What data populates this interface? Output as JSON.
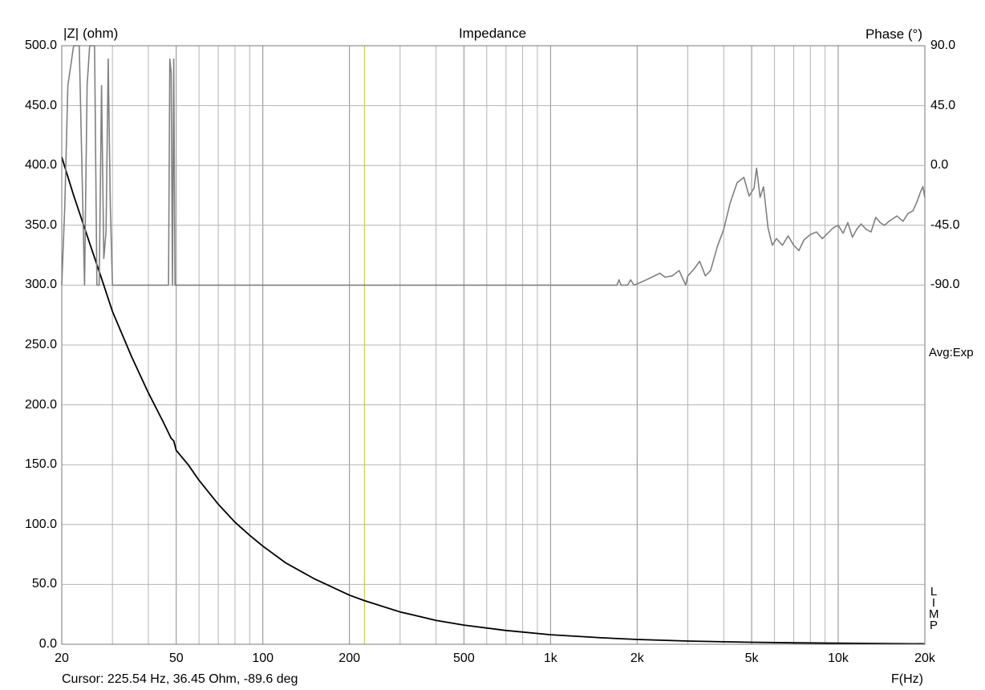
{
  "chart_data": {
    "type": "line",
    "title": "Impedance",
    "ylabel": "|Z| (ohm)",
    "y2label": "Phase (°)",
    "xlabel": "F(Hz)",
    "xscale": "log",
    "xlim": [
      20,
      20000
    ],
    "ylim": [
      0,
      500
    ],
    "y2lim": [
      -90,
      90
    ],
    "grid": true,
    "x_ticks": [
      20,
      50,
      100,
      200,
      500,
      1000,
      2000,
      5000,
      10000,
      20000
    ],
    "x_tick_labels": [
      "20",
      "50",
      "100",
      "200",
      "500",
      "1k",
      "2k",
      "5k",
      "10k",
      "20k"
    ],
    "y_ticks": [
      0,
      50,
      100,
      150,
      200,
      250,
      300,
      350,
      400,
      450,
      500
    ],
    "y_tick_labels": [
      "0.0",
      "50.0",
      "100.0",
      "150.0",
      "200.0",
      "250.0",
      "300.0",
      "350.0",
      "400.0",
      "450.0",
      "500.0"
    ],
    "y2_ticks": [
      90,
      45,
      0,
      -45,
      -90
    ],
    "y2_tick_labels": [
      "90.0",
      "45.0",
      "0.0",
      "-45.0",
      "-90.0"
    ],
    "cursor_x": 225.54,
    "series": [
      {
        "axis": "left",
        "color": "#000000",
        "points": [
          [
            20,
            407
          ],
          [
            22,
            375
          ],
          [
            25,
            335
          ],
          [
            28,
            300
          ],
          [
            30,
            278
          ],
          [
            35,
            240
          ],
          [
            40,
            210
          ],
          [
            45,
            186
          ],
          [
            48,
            172
          ],
          [
            49,
            170
          ],
          [
            50,
            162
          ],
          [
            55,
            150
          ],
          [
            60,
            137
          ],
          [
            70,
            117
          ],
          [
            80,
            102
          ],
          [
            90,
            91
          ],
          [
            100,
            82
          ],
          [
            120,
            68
          ],
          [
            150,
            55
          ],
          [
            200,
            41
          ],
          [
            225.54,
            36.45
          ],
          [
            300,
            27
          ],
          [
            400,
            20
          ],
          [
            500,
            16
          ],
          [
            700,
            11.5
          ],
          [
            1000,
            8
          ],
          [
            1500,
            5.4
          ],
          [
            2000,
            4
          ],
          [
            3000,
            2.7
          ],
          [
            5000,
            1.7
          ],
          [
            7000,
            1.2
          ],
          [
            10000,
            0.9
          ],
          [
            15000,
            0.6
          ],
          [
            20000,
            0.4
          ]
        ]
      },
      {
        "axis": "right",
        "color": "#808080",
        "points": [
          [
            20,
            -90
          ],
          [
            20.5,
            -30
          ],
          [
            21,
            60
          ],
          [
            22,
            90
          ],
          [
            23,
            90
          ],
          [
            24,
            -90
          ],
          [
            24.5,
            60
          ],
          [
            25,
            90
          ],
          [
            26,
            90
          ],
          [
            26.5,
            -90
          ],
          [
            27,
            -90
          ],
          [
            27.5,
            60
          ],
          [
            28,
            -70
          ],
          [
            28.5,
            -50
          ],
          [
            29,
            80
          ],
          [
            29.5,
            -30
          ],
          [
            30,
            -90
          ],
          [
            40,
            -90
          ],
          [
            47,
            -90
          ],
          [
            47.5,
            80
          ],
          [
            48,
            70
          ],
          [
            48.5,
            -90
          ],
          [
            49,
            80
          ],
          [
            49.5,
            -90
          ],
          [
            50,
            -90
          ],
          [
            1700,
            -90
          ],
          [
            1730,
            -86
          ],
          [
            1760,
            -90
          ],
          [
            1850,
            -90
          ],
          [
            1900,
            -86
          ],
          [
            1950,
            -90
          ],
          [
            2050,
            -88
          ],
          [
            2150,
            -86
          ],
          [
            2250,
            -84
          ],
          [
            2400,
            -81
          ],
          [
            2500,
            -84
          ],
          [
            2650,
            -83
          ],
          [
            2800,
            -79
          ],
          [
            2950,
            -90
          ],
          [
            3000,
            -83
          ],
          [
            3150,
            -78
          ],
          [
            3300,
            -72
          ],
          [
            3450,
            -83
          ],
          [
            3600,
            -79
          ],
          [
            3800,
            -61
          ],
          [
            4000,
            -48
          ],
          [
            4200,
            -29
          ],
          [
            4450,
            -13
          ],
          [
            4700,
            -9
          ],
          [
            4900,
            -23
          ],
          [
            5100,
            -17
          ],
          [
            5200,
            -2
          ],
          [
            5350,
            -24
          ],
          [
            5500,
            -16
          ],
          [
            5700,
            -47
          ],
          [
            5900,
            -60
          ],
          [
            6100,
            -55
          ],
          [
            6400,
            -60
          ],
          [
            6700,
            -53
          ],
          [
            7000,
            -60
          ],
          [
            7300,
            -64
          ],
          [
            7600,
            -56
          ],
          [
            8000,
            -52
          ],
          [
            8400,
            -50
          ],
          [
            8800,
            -55
          ],
          [
            9200,
            -51
          ],
          [
            9600,
            -47
          ],
          [
            10000,
            -45
          ],
          [
            10400,
            -51
          ],
          [
            10800,
            -43
          ],
          [
            11200,
            -54
          ],
          [
            11600,
            -48
          ],
          [
            12000,
            -44
          ],
          [
            12500,
            -48
          ],
          [
            13000,
            -50
          ],
          [
            13500,
            -39
          ],
          [
            14000,
            -43
          ],
          [
            14500,
            -45
          ],
          [
            15000,
            -42
          ],
          [
            15500,
            -40
          ],
          [
            16000,
            -38
          ],
          [
            16800,
            -42
          ],
          [
            17500,
            -36
          ],
          [
            18200,
            -34
          ],
          [
            18800,
            -27
          ],
          [
            19300,
            -20
          ],
          [
            19700,
            -16
          ],
          [
            20000,
            -24
          ]
        ]
      }
    ]
  },
  "cursor_readout": "Cursor: 225.54 Hz, 36.45 Ohm, -89.6 deg",
  "avg_label": "Avg:Exp",
  "limp_label": "LIMP"
}
